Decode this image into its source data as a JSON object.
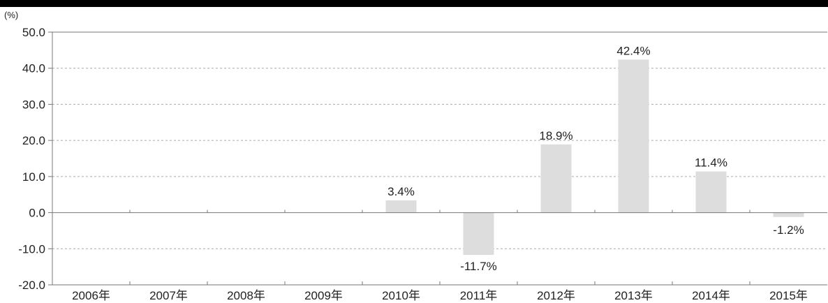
{
  "chart_data": {
    "type": "bar",
    "unit_label": "(%)",
    "categories": [
      "2006年",
      "2007年",
      "2008年",
      "2009年",
      "2010年",
      "2011年",
      "2012年",
      "2013年",
      "2014年",
      "2015年"
    ],
    "values": [
      null,
      null,
      null,
      null,
      3.4,
      -11.7,
      18.9,
      42.4,
      11.4,
      -1.2
    ],
    "data_labels": [
      "",
      "",
      "",
      "",
      "3.4%",
      "-11.7%",
      "18.9%",
      "42.4%",
      "11.4%",
      "-1.2%"
    ],
    "ylim": [
      -20,
      50
    ],
    "yticks": [
      "50.0",
      "40.0",
      "30.0",
      "20.0",
      "10.0",
      "0.0",
      "-10.0",
      "-20.0"
    ],
    "ytick_values": [
      50,
      40,
      30,
      20,
      10,
      0,
      -10,
      -20
    ],
    "grid": "dashed horizontal",
    "colors": {
      "bar": "#dddddd",
      "axis": "#777777",
      "grid": "#aaaaaa",
      "text": "#222222",
      "top_band": "#000000"
    }
  }
}
